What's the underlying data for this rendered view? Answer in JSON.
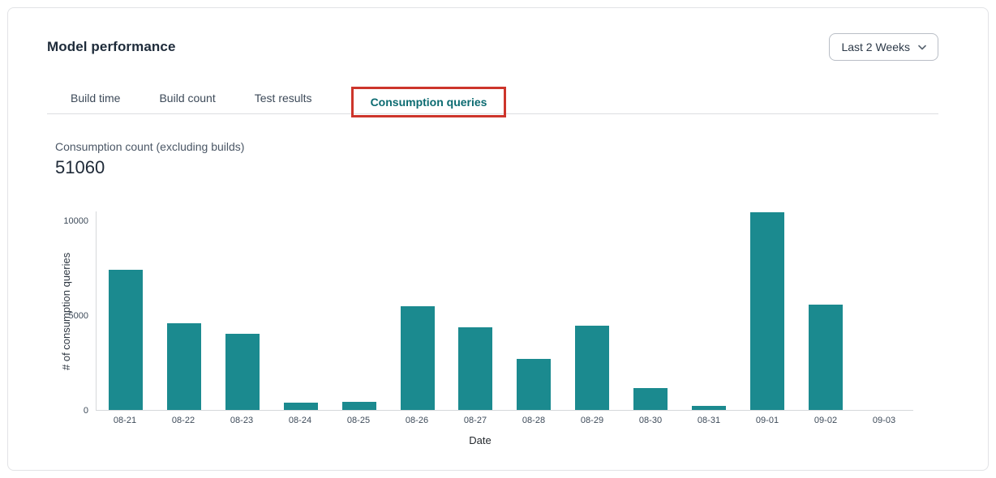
{
  "header": {
    "title": "Model performance",
    "time_range": {
      "selected": "Last 2 Weeks",
      "icon": "chevron-down-icon"
    }
  },
  "tabs": [
    {
      "label": "Build time",
      "active": false
    },
    {
      "label": "Build count",
      "active": false
    },
    {
      "label": "Test results",
      "active": false
    },
    {
      "label": "Consumption queries",
      "active": true,
      "annotated": true
    }
  ],
  "annotation": {
    "shape": "red-highlight-box",
    "color": "#cd352b"
  },
  "metric": {
    "label": "Consumption count (excluding builds)",
    "value": "51060"
  },
  "chart_data": {
    "type": "bar",
    "categories": [
      "08-21",
      "08-22",
      "08-23",
      "08-24",
      "08-25",
      "08-26",
      "08-27",
      "08-28",
      "08-29",
      "08-30",
      "08-31",
      "09-01",
      "09-02",
      "09-03"
    ],
    "values": [
      7360,
      4580,
      4000,
      370,
      440,
      5470,
      4350,
      2680,
      4450,
      1150,
      230,
      10420,
      5560,
      0
    ],
    "title": "",
    "xlabel": "Date",
    "ylabel": "# of consumption queries",
    "yticks": [
      0,
      5000,
      10000
    ],
    "ylim": [
      0,
      10490
    ],
    "bar_color": "#1b8a8f",
    "grid": false,
    "legend": false,
    "total": 51060
  },
  "colors": {
    "accent_teal": "#0c6b71",
    "bar_teal": "#1b8a8f",
    "annotation_red": "#cd352b",
    "text_dark": "#1e2b3a",
    "border_light": "#dcdee1"
  }
}
